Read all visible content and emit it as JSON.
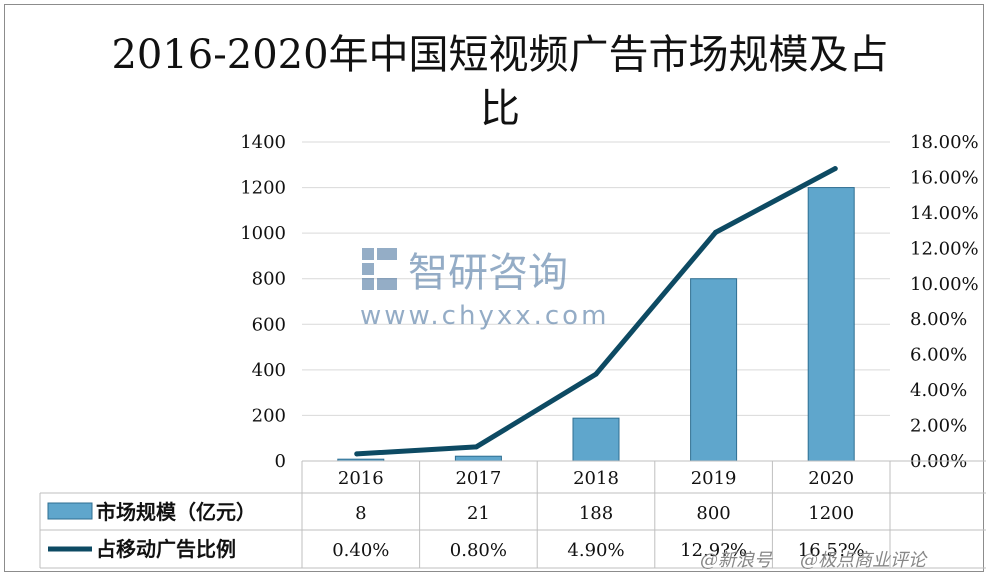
{
  "watermark": {
    "cn": "智研咨询",
    "url": "www.chyxx.com"
  },
  "credit": {
    "left": "@新浪号",
    "right": "@极点商业评论"
  },
  "colors": {
    "bar": "#5fa6cc",
    "bar_edge": "#2f6f92",
    "line": "#0d4a63",
    "grid": "#d9d9d9"
  },
  "chart_data": {
    "type": "bar",
    "title": "2016-2020年中国短视频广告市场规模及占比",
    "categories": [
      "2016",
      "2017",
      "2018",
      "2019",
      "2020"
    ],
    "ylim": [
      0,
      1400
    ],
    "yticks": [
      "0",
      "200",
      "400",
      "600",
      "800",
      "1000",
      "1200",
      "1400"
    ],
    "y2lim": [
      0,
      18
    ],
    "y2ticks": [
      "0.00%",
      "2.00%",
      "4.00%",
      "6.00%",
      "8.00%",
      "10.00%",
      "12.00%",
      "14.00%",
      "16.00%",
      "18.00%"
    ],
    "grid": true,
    "series": [
      {
        "name": "市场规模（亿元）",
        "type": "bar",
        "axis": "left",
        "values": [
          8,
          21,
          188,
          800,
          1200
        ],
        "labels": [
          "8",
          "21",
          "188",
          "800",
          "1200"
        ]
      },
      {
        "name": "占移动广告比例",
        "type": "line",
        "axis": "right",
        "values": [
          0.4,
          0.8,
          4.9,
          12.9,
          16.5
        ],
        "labels": [
          "0.40%",
          "0.80%",
          "4.90%",
          "12.9?%",
          "16.5?%"
        ]
      }
    ]
  }
}
